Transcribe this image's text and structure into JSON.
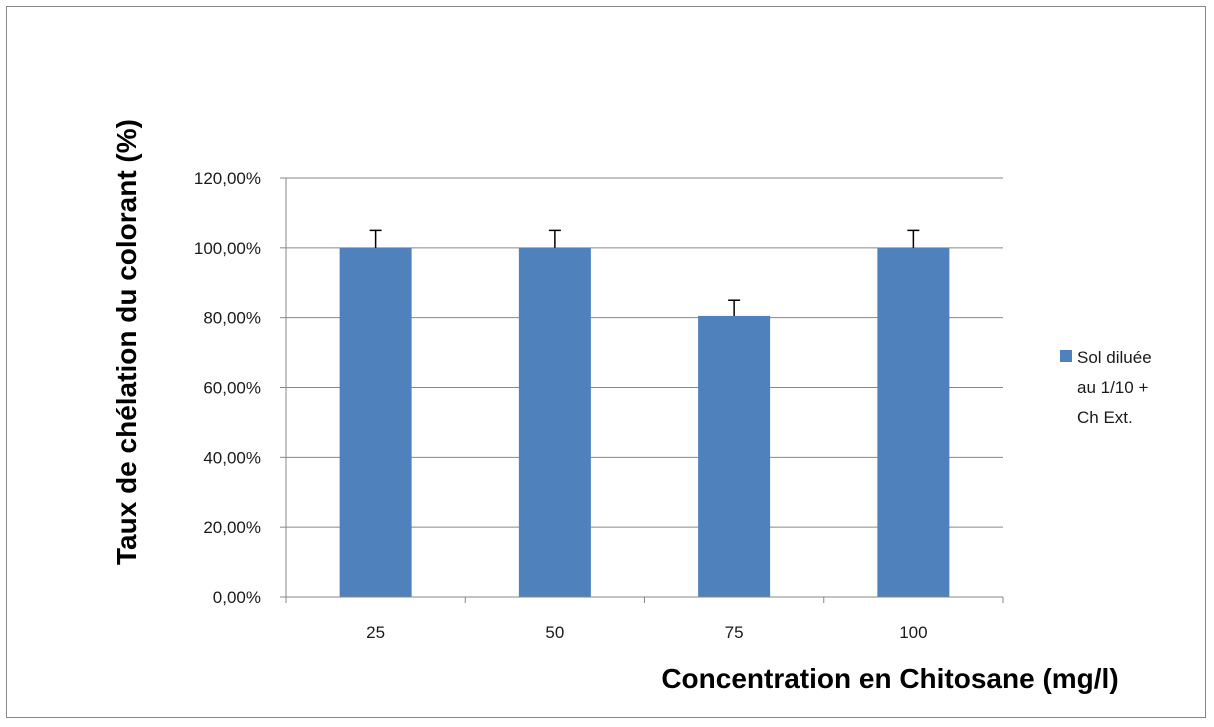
{
  "chart_data": {
    "type": "bar",
    "title": "",
    "xlabel": "Concentration en Chitosane (mg/l)",
    "ylabel": "Taux de chélation du colorant (%)",
    "categories": [
      "25",
      "50",
      "75",
      "100"
    ],
    "series": [
      {
        "name": "Sol diluée au 1/10 + Ch Ext.",
        "legend_lines": [
          "Sol diluée",
          "au 1/10 +",
          "Ch Ext."
        ],
        "values": [
          1.0,
          1.0,
          0.805,
          1.0
        ],
        "error": [
          0.05,
          0.05,
          0.045,
          0.05
        ],
        "color": "#4f81bd"
      }
    ],
    "ylim": [
      0,
      1.2
    ],
    "yticks": [
      0,
      0.2,
      0.4,
      0.6,
      0.8,
      1.0,
      1.2
    ],
    "ytick_labels": [
      "0,00%",
      "20,00%",
      "40,00%",
      "60,00%",
      "80,00%",
      "100,00%",
      "120,00%"
    ],
    "grid": true,
    "legend_position": "right"
  }
}
